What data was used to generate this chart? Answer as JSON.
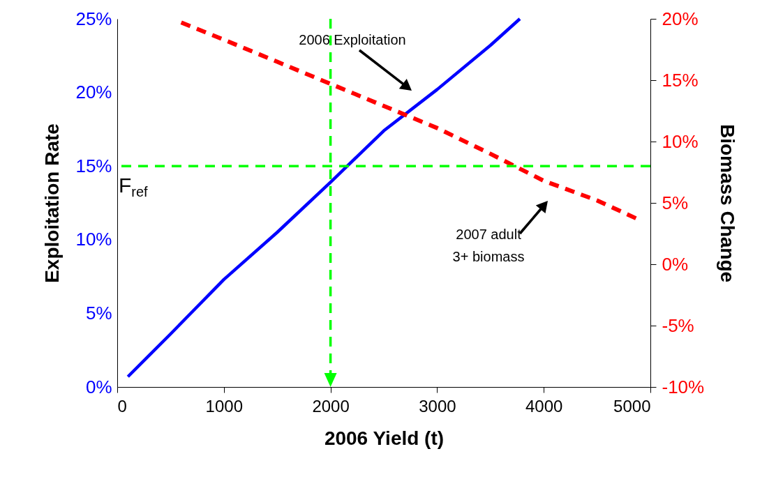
{
  "chart_data": {
    "type": "line",
    "xlabel": "2006 Yield (t)",
    "ylabel": "Exploitation Rate",
    "y2label": "Biomass Change",
    "grid": false,
    "xlim": [
      0,
      5000
    ],
    "xticks": [
      0,
      1000,
      2000,
      3000,
      4000,
      5000
    ],
    "ylim": [
      0,
      25
    ],
    "yticks": [
      {
        "value": 0,
        "label": "0%"
      },
      {
        "value": 5,
        "label": "5%"
      },
      {
        "value": 10,
        "label": "10%"
      },
      {
        "value": 15,
        "label": "15%"
      },
      {
        "value": 20,
        "label": "20%"
      },
      {
        "value": 25,
        "label": "25%"
      }
    ],
    "y2lim": [
      -10,
      20
    ],
    "y2ticks": [
      {
        "value": -10,
        "label": "-10%"
      },
      {
        "value": -5,
        "label": "-5%"
      },
      {
        "value": 0,
        "label": "0%"
      },
      {
        "value": 5,
        "label": "5%"
      },
      {
        "value": 10,
        "label": "10%"
      },
      {
        "value": 15,
        "label": "15%"
      },
      {
        "value": 20,
        "label": "20%"
      }
    ],
    "series": [
      {
        "color": "#0000ff",
        "line_style": "solid",
        "x": [
          100,
          500,
          1000,
          1500,
          2000,
          2500,
          3000,
          3500,
          3776
        ],
        "values": [
          0.7,
          3.6,
          7.3,
          10.5,
          13.9,
          17.4,
          20.2,
          23.2,
          25
        ]
      },
      {
        "color": "#ff0000",
        "line_style": "dashed",
        "axis": "y2",
        "x": [
          600,
          1000,
          1500,
          2000,
          2500,
          3000,
          3500,
          4000,
          4500,
          4900
        ],
        "values": [
          19.7,
          18.3,
          16.5,
          14.7,
          12.9,
          11.1,
          9.0,
          6.8,
          5.2,
          3.6
        ]
      }
    ],
    "ref_lines": [
      {
        "axis": "y",
        "value": 15,
        "label": "F$_{ref}$",
        "color": "#00ff00",
        "line_style": "dashed"
      },
      {
        "axis": "x",
        "value": 2000,
        "color": "#00ff00",
        "line_style": "dashed"
      }
    ],
    "annotations": [
      "2006 Exploitation",
      "2007 adult\n3+ biomass"
    ]
  }
}
